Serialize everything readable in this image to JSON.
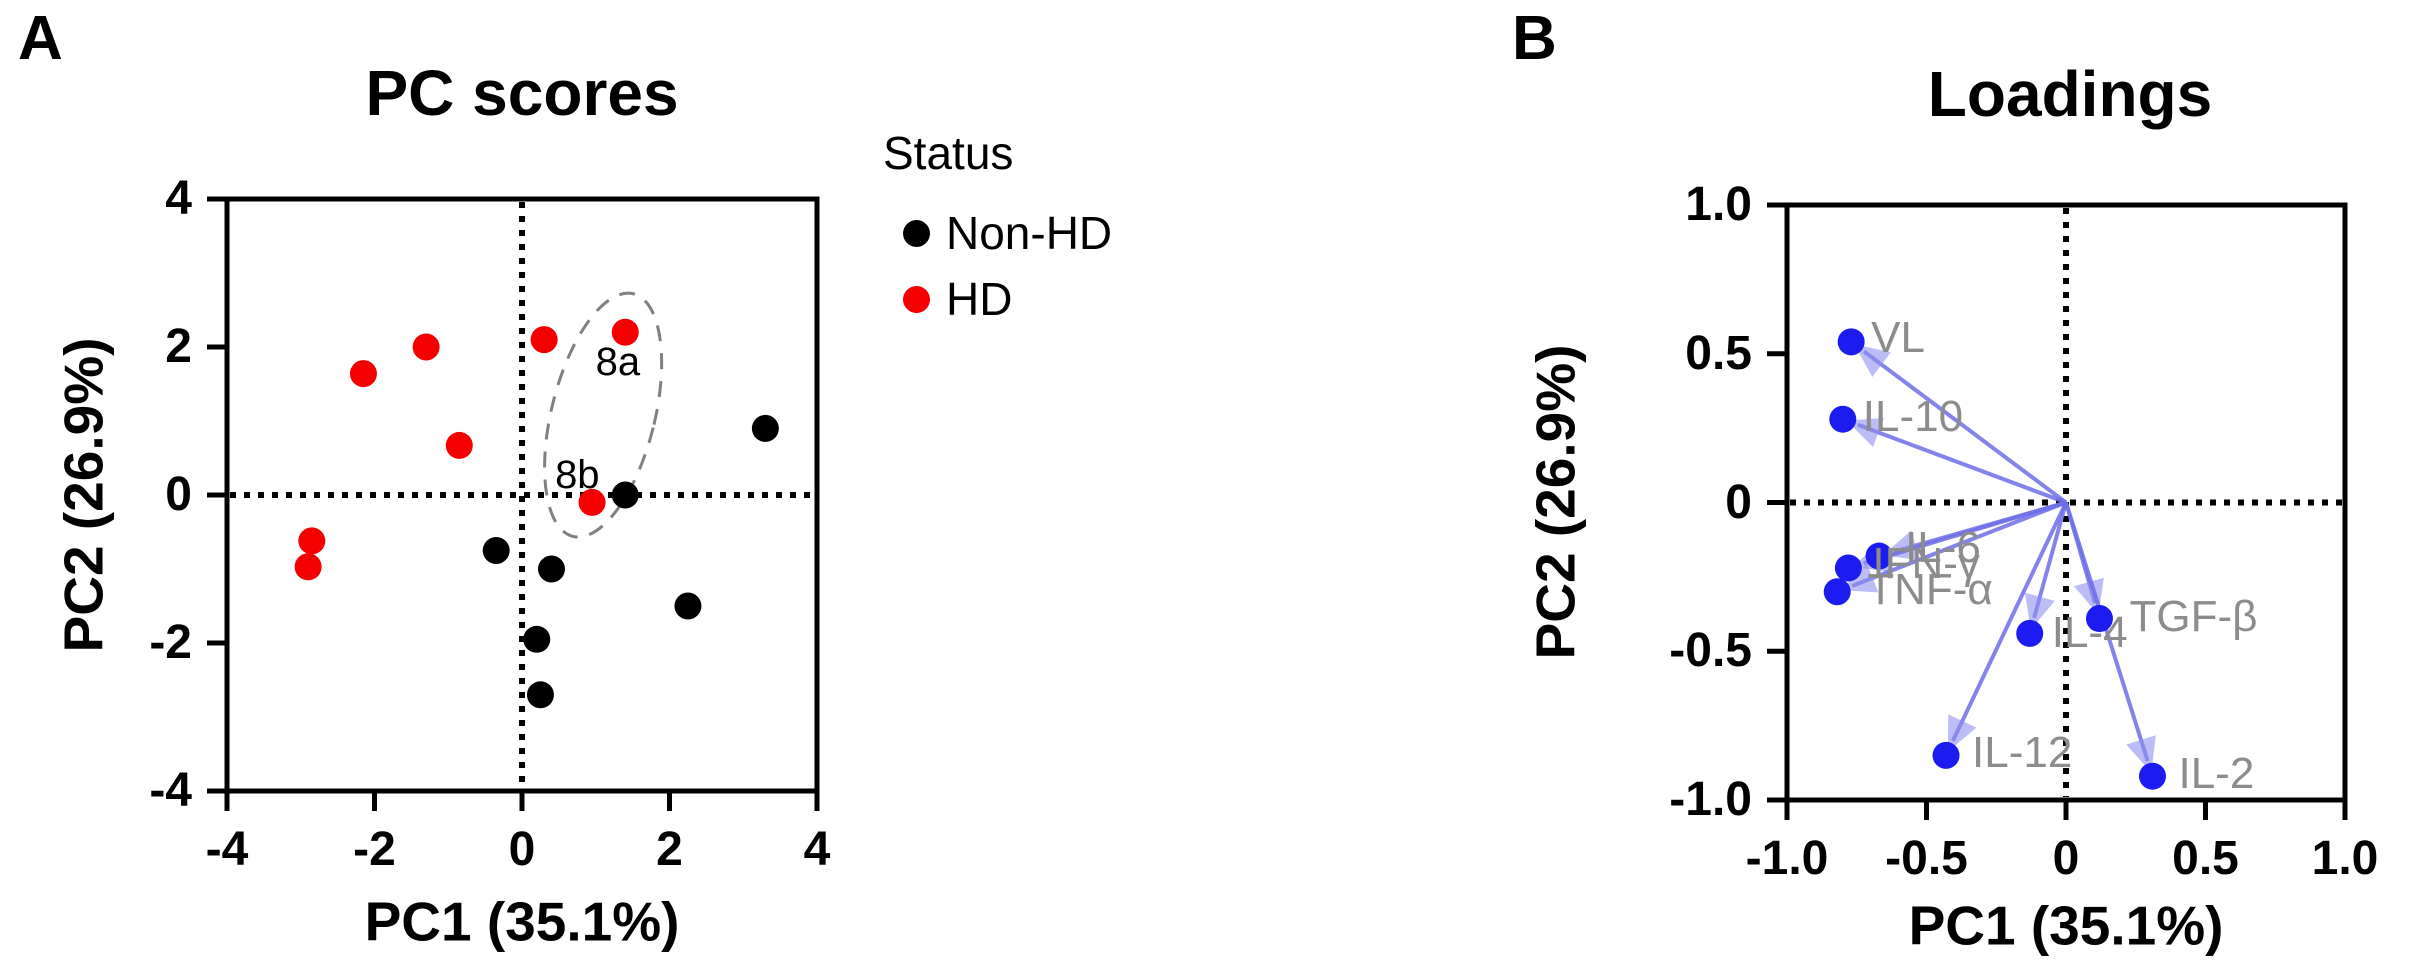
{
  "background": "#ffffff",
  "panels": {
    "A": {
      "label": "A",
      "title": "PC scores",
      "xlabel": "PC1 (35.1%)",
      "ylabel": "PC2 (26.9%)",
      "legend": {
        "title": "Status",
        "items": [
          {
            "label": "Non-HD",
            "color": "#000000"
          },
          {
            "label": "HD",
            "color": "#f40000"
          }
        ]
      }
    },
    "B": {
      "label": "B",
      "title": "Loadings",
      "xlabel": "PC1 (35.1%)",
      "ylabel": "PC2 (26.9%)"
    }
  },
  "chart_data": [
    {
      "panel": "A",
      "type": "scatter",
      "title": "PC scores",
      "xlabel": "PC1 (35.1%)",
      "ylabel": "PC2 (26.9%)",
      "xlim": [
        -4,
        4
      ],
      "ylim": [
        -4,
        4
      ],
      "xticks": {
        "values": [
          -4,
          -2,
          0,
          2,
          4
        ],
        "labels": [
          "-4",
          "-2",
          "0",
          "2",
          "4"
        ]
      },
      "yticks": {
        "values": [
          4,
          2,
          0,
          -2,
          -4
        ],
        "labels": [
          "4",
          "2",
          "0",
          "-2",
          "-4"
        ]
      },
      "zero_lines": "dotted",
      "grid": false,
      "series": [
        {
          "name": "Non-HD",
          "color": "#000000",
          "points": [
            [
              -0.35,
              -0.75
            ],
            [
              0.2,
              -1.95
            ],
            [
              0.25,
              -2.7
            ],
            [
              0.4,
              -1.0
            ],
            [
              1.4,
              0.0
            ],
            [
              2.25,
              -1.5
            ],
            [
              3.3,
              0.9
            ]
          ]
        },
        {
          "name": "HD",
          "color": "#f40000",
          "points": [
            [
              -2.9,
              -0.97
            ],
            [
              -2.85,
              -0.62
            ],
            [
              -2.15,
              1.64
            ],
            [
              -1.3,
              2.0
            ],
            [
              -0.85,
              0.67
            ],
            [
              0.3,
              2.1
            ],
            [
              0.95,
              -0.1
            ],
            [
              1.4,
              2.2
            ]
          ]
        }
      ],
      "point_annotations": [
        {
          "text": "8a",
          "x": 1.3,
          "y": 1.8
        },
        {
          "text": "8b",
          "x": 0.75,
          "y": 0.27
        }
      ],
      "ellipse": {
        "cx": 1.1,
        "cy": 1.08,
        "rx": 0.7,
        "ry": 1.69,
        "rotate_deg": 14,
        "color": "#808080",
        "style": "dashed"
      }
    },
    {
      "panel": "B",
      "type": "scatter",
      "subtype": "pca-loadings-biplot",
      "title": "Loadings",
      "xlabel": "PC1 (35.1%)",
      "ylabel": "PC2 (26.9%)",
      "xlim": [
        -1,
        1
      ],
      "ylim": [
        -1,
        1
      ],
      "xticks": {
        "values": [
          -1,
          -0.5,
          0,
          0.5,
          1
        ],
        "labels": [
          "-1.0",
          "-0.5",
          "0",
          "0.5",
          "1.0"
        ]
      },
      "yticks": {
        "values": [
          1,
          0.5,
          0,
          -0.5,
          -1
        ],
        "labels": [
          "1.0",
          "0.5",
          "0",
          "-0.5",
          "-1.0"
        ]
      },
      "zero_lines": "dotted",
      "grid": false,
      "arrows_from_origin": true,
      "points": [
        {
          "label": "VL",
          "x": -0.77,
          "y": 0.54
        },
        {
          "label": "IL-10",
          "x": -0.8,
          "y": 0.28
        },
        {
          "label": "IL-6",
          "x": -0.67,
          "y": -0.18
        },
        {
          "label": "IFN-γ",
          "x": -0.78,
          "y": -0.22
        },
        {
          "label": "TNF-α",
          "x": -0.82,
          "y": -0.3
        },
        {
          "label": "IL-4",
          "x": -0.13,
          "y": -0.44
        },
        {
          "label": "TGF-β",
          "x": 0.12,
          "y": -0.39
        },
        {
          "label": "IL-12",
          "x": -0.43,
          "y": -0.85
        },
        {
          "label": "IL-2",
          "x": 0.31,
          "y": -0.92
        }
      ],
      "colors": {
        "dot": "#1c1cf0",
        "arrow_line": "#6e6ee8",
        "arrow_head": "#8f8ff0",
        "label": "#8c8c8c"
      }
    }
  ]
}
